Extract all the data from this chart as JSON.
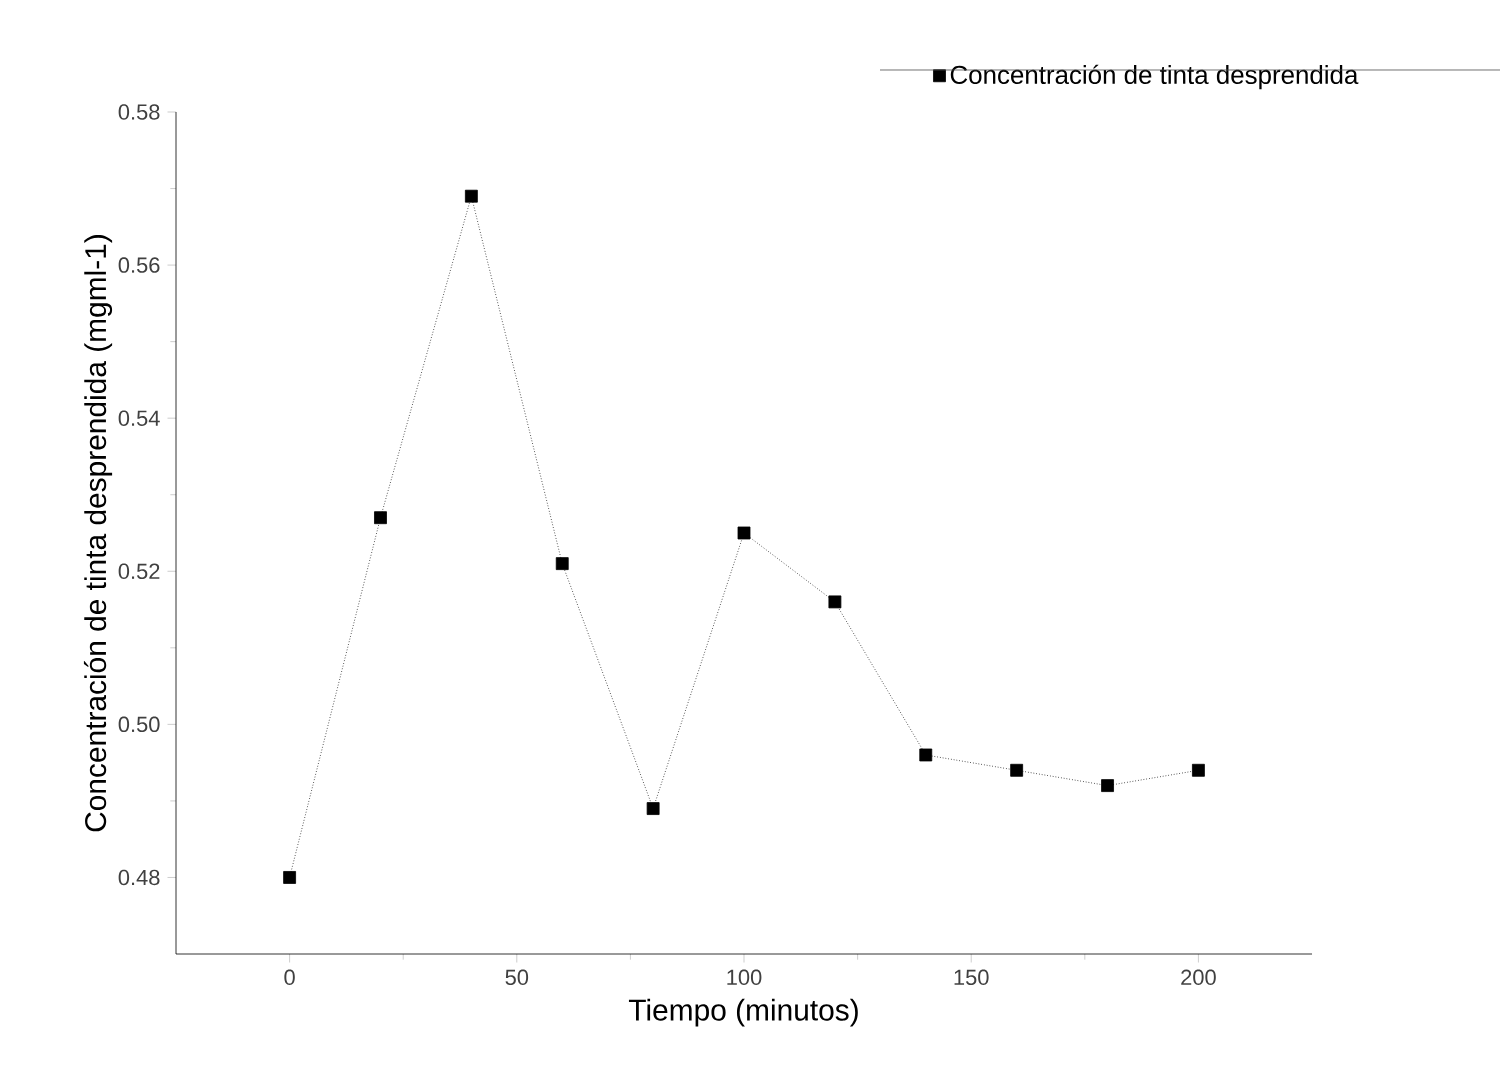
{
  "chart_data": {
    "type": "line",
    "xlabel": "Tiempo (minutos)",
    "ylabel": "Concentración de tinta desprendida (mgml-1)",
    "x": [
      0,
      20,
      40,
      60,
      80,
      100,
      120,
      140,
      160,
      180,
      200
    ],
    "series": [
      {
        "name": "Concentración de tinta desprendida",
        "color": "#000000",
        "values": [
          0.48,
          0.527,
          0.569,
          0.521,
          0.489,
          0.525,
          0.516,
          0.496,
          0.494,
          0.492,
          0.494
        ]
      }
    ],
    "xlim": [
      -25,
      225
    ],
    "ylim": [
      0.47,
      0.58
    ],
    "xticks": [
      0,
      50,
      100,
      150,
      200
    ],
    "yticks": [
      {
        "value": 0.48,
        "label": "0.48"
      },
      {
        "value": 0.5,
        "label": "0.50"
      },
      {
        "value": 0.52,
        "label": "0.52"
      },
      {
        "value": 0.54,
        "label": "0.54"
      },
      {
        "value": 0.56,
        "label": "0.56"
      },
      {
        "value": 0.58,
        "label": "0.58"
      }
    ],
    "grid": false,
    "legend": "top right",
    "marker": "square",
    "line_style": "dotted"
  }
}
